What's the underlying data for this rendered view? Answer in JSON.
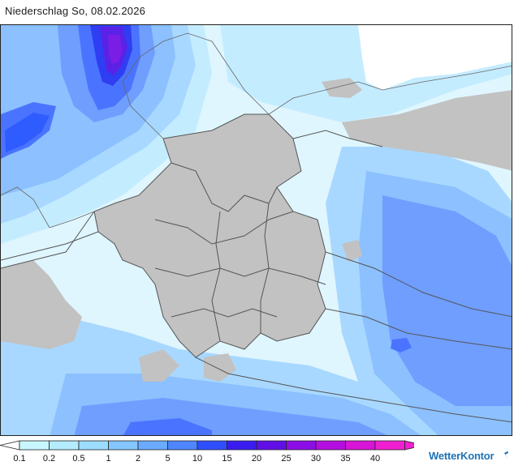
{
  "title": "Niederschlag So, 08.02.2026",
  "legend": {
    "ticks": [
      "0.1",
      "0.2",
      "0.5",
      "1",
      "2",
      "5",
      "10",
      "15",
      "20",
      "25",
      "30",
      "35",
      "40"
    ],
    "colors": [
      "#c8f8ff",
      "#b4ecff",
      "#9cdcff",
      "#84c6ff",
      "#6aaaff",
      "#4e86ff",
      "#2f4fff",
      "#3a1cf0",
      "#6010e6",
      "#8c0ee6",
      "#b40ee0",
      "#d814d8",
      "#f020d2"
    ],
    "start_color": "#ffffff",
    "end_color": "#f020d2"
  },
  "brand": {
    "name": "WetterKontor",
    "color": "#1e73b8"
  },
  "map_colors": {
    "land": "#c2c2c2",
    "sea_white": "#ffffff",
    "precip_very_light": "#dff6ff",
    "precip_light": "#c4ecff",
    "precip_moderate": "#a8d8ff",
    "precip_medium": "#8cc0ff",
    "precip_strong": "#6f9eff",
    "precip_heavy": "#4a74ff",
    "precip_very_heavy": "#2f3ef2",
    "precip_extreme": "#5a22e6",
    "border": "#555555"
  }
}
